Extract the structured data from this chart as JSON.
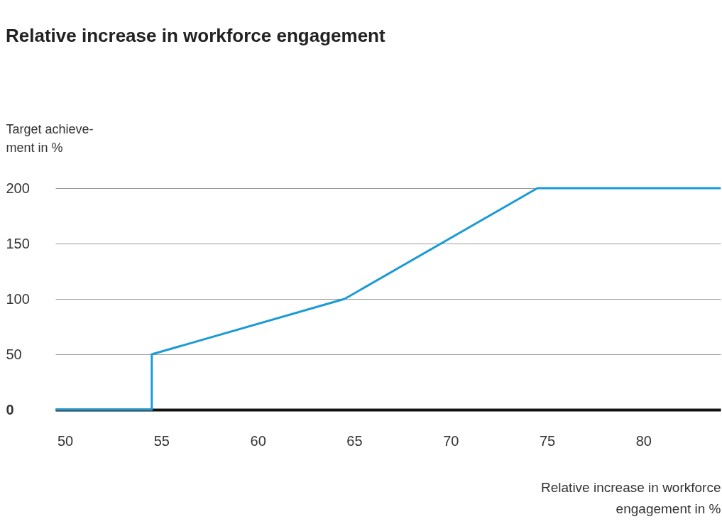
{
  "chart_data": {
    "type": "line",
    "title": "Relative increase in workforce engagement",
    "xlabel": "Relative increase in workforce\nengagement in %",
    "ylabel": "Target achieve-\nment in %",
    "x": [
      49.5,
      54.5,
      54.5,
      64.5,
      74.5,
      84
    ],
    "series": [
      {
        "color": "#1b9ad6",
        "values": [
          0,
          0,
          50,
          100,
          200,
          200
        ]
      }
    ],
    "xlim": [
      49.5,
      84
    ],
    "xticks": [
      50,
      55,
      60,
      65,
      70,
      75,
      80
    ],
    "ylim": [
      0,
      200
    ],
    "yticks": [
      0,
      50,
      100,
      150,
      200
    ],
    "grid": "y",
    "legend": false,
    "marker": "none",
    "line_style": "solid"
  }
}
